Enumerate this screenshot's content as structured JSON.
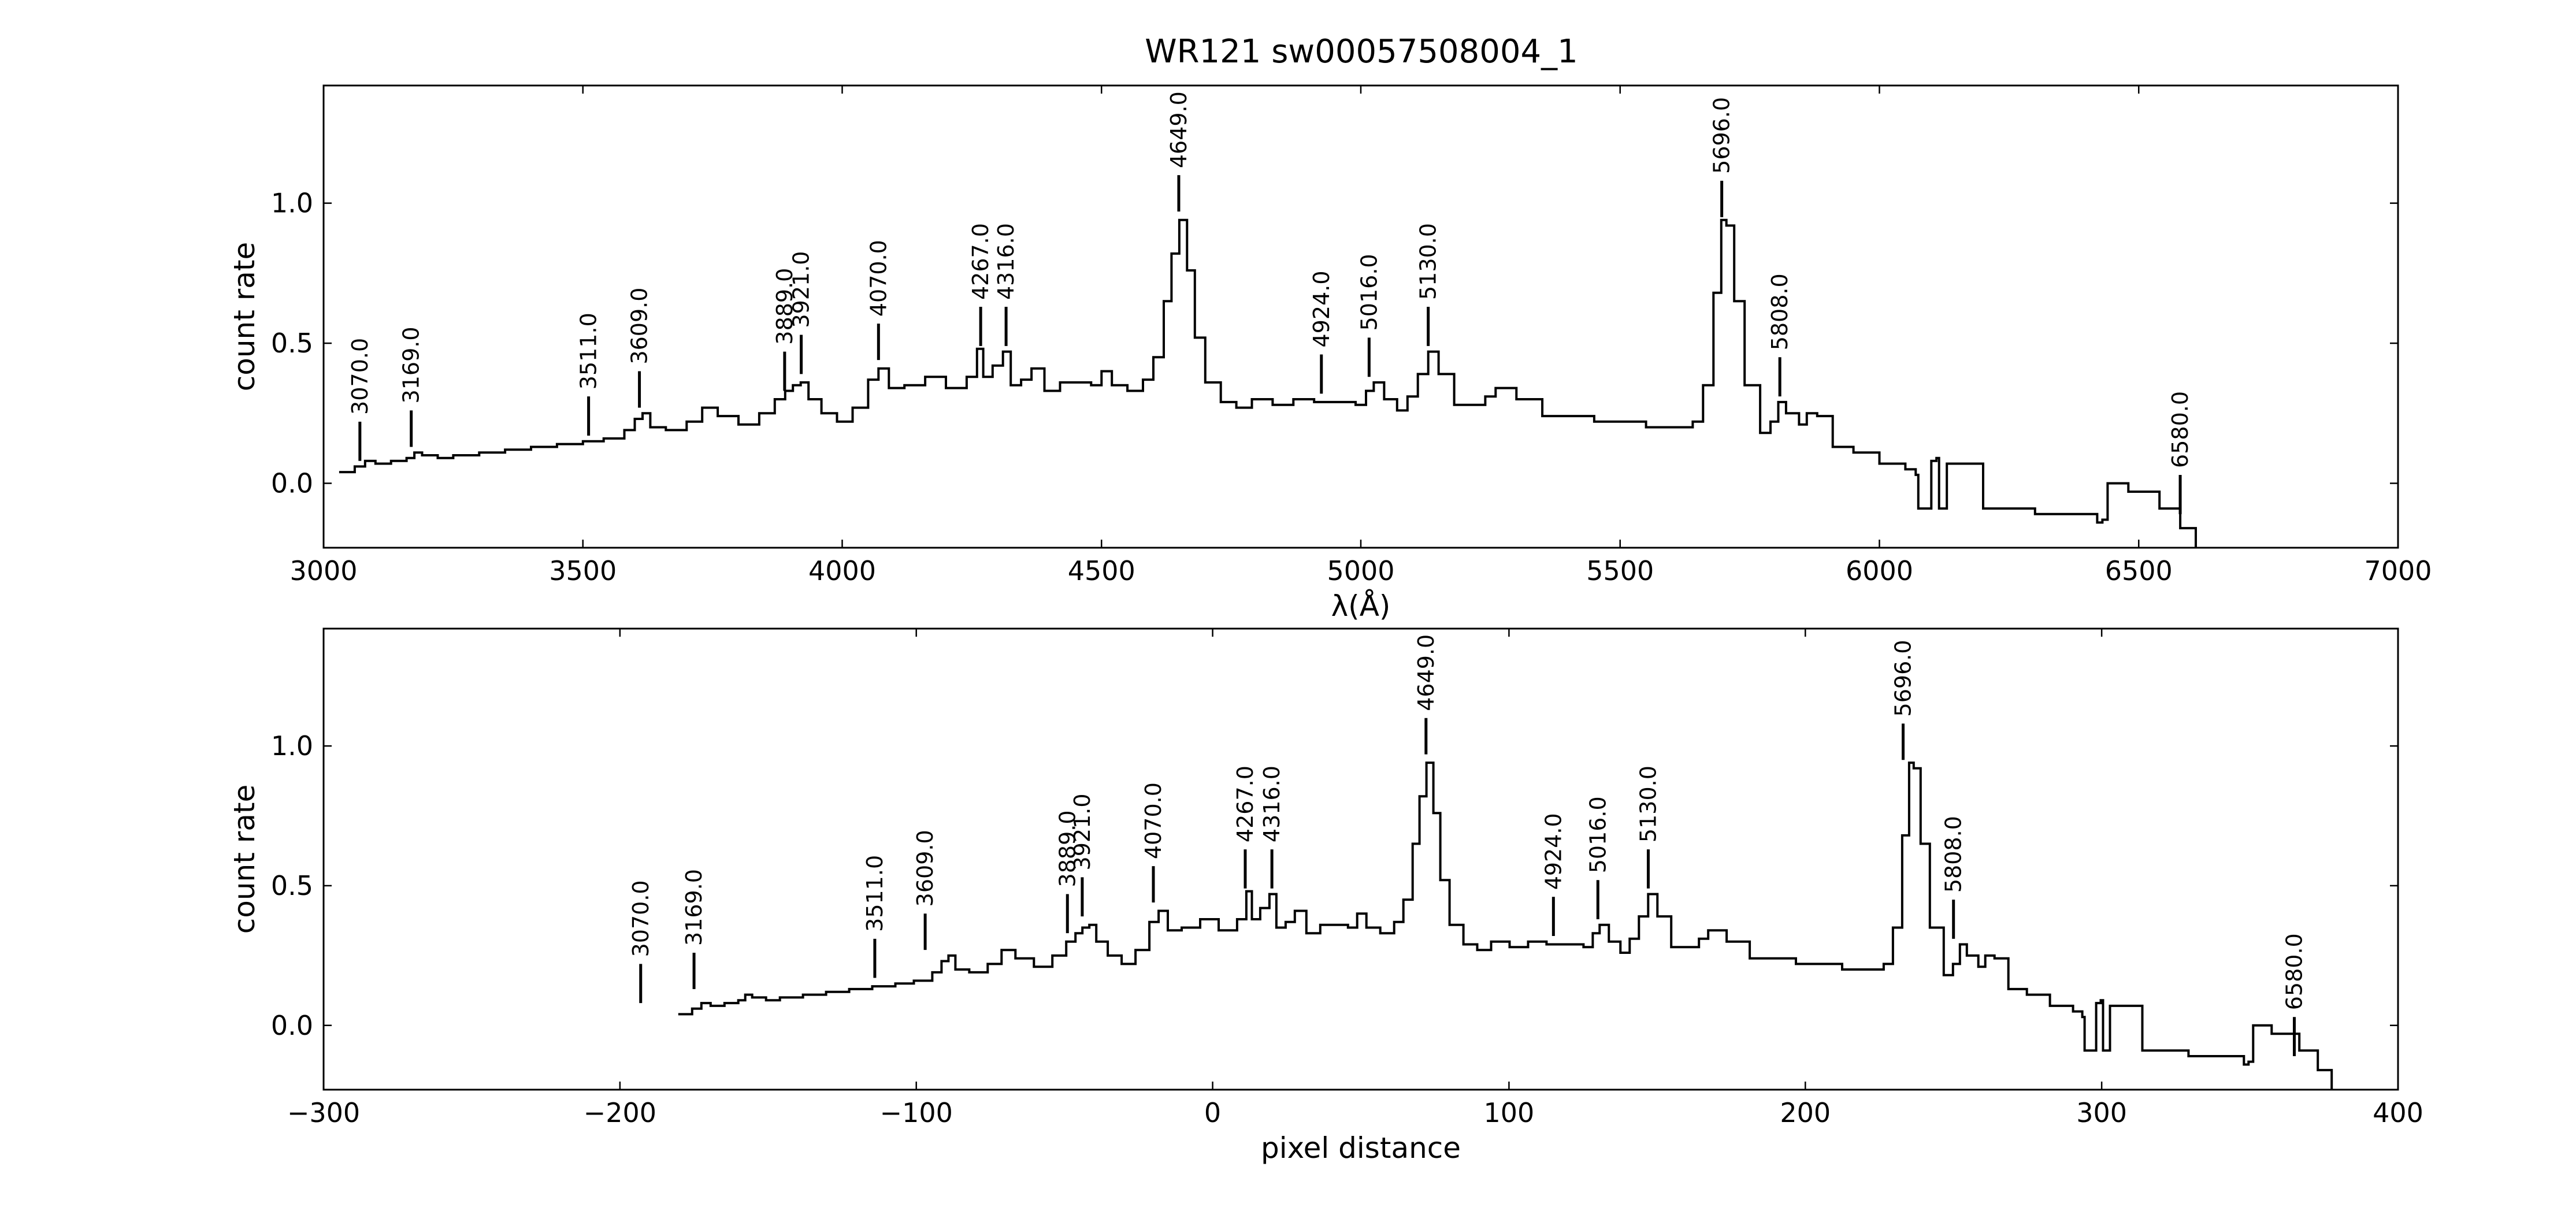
{
  "figure": {
    "title": "WR121  sw00057508004_1",
    "line_color": "#000000"
  },
  "chart_data": [
    {
      "type": "line",
      "panel": "top",
      "xlabel": "λ(Å)",
      "ylabel": "count rate",
      "xlim": [
        3000,
        7000
      ],
      "ylim": [
        -0.23,
        1.42
      ],
      "xticks": [
        "3000",
        "3500",
        "4000",
        "4500",
        "5000",
        "5500",
        "6000",
        "6500",
        "7000"
      ],
      "yticks": [
        "0.0",
        "0.5",
        "1.0"
      ],
      "grid": false,
      "line_labels": [
        {
          "label": "3070.0",
          "x": 3070,
          "y0": 0.08,
          "y1": 0.22
        },
        {
          "label": "3169.0",
          "x": 3169,
          "y0": 0.13,
          "y1": 0.26
        },
        {
          "label": "3511.0",
          "x": 3511,
          "y0": 0.17,
          "y1": 0.31
        },
        {
          "label": "3609.0",
          "x": 3609,
          "y0": 0.27,
          "y1": 0.4
        },
        {
          "label": "3889.0",
          "x": 3889,
          "y0": 0.33,
          "y1": 0.47
        },
        {
          "label": "3921.0",
          "x": 3921,
          "y0": 0.39,
          "y1": 0.53
        },
        {
          "label": "4070.0",
          "x": 4070,
          "y0": 0.44,
          "y1": 0.57
        },
        {
          "label": "4267.0",
          "x": 4267,
          "y0": 0.49,
          "y1": 0.63
        },
        {
          "label": "4316.0",
          "x": 4316,
          "y0": 0.49,
          "y1": 0.63
        },
        {
          "label": "4649.0",
          "x": 4649,
          "y0": 0.97,
          "y1": 1.1
        },
        {
          "label": "4924.0",
          "x": 4924,
          "y0": 0.32,
          "y1": 0.46
        },
        {
          "label": "5016.0",
          "x": 5016,
          "y0": 0.38,
          "y1": 0.52
        },
        {
          "label": "5130.0",
          "x": 5130,
          "y0": 0.49,
          "y1": 0.63
        },
        {
          "label": "5696.0",
          "x": 5696,
          "y0": 0.95,
          "y1": 1.08
        },
        {
          "label": "5808.0",
          "x": 5808,
          "y0": 0.31,
          "y1": 0.45
        },
        {
          "label": "6580.0",
          "x": 6580,
          "y0": -0.11,
          "y1": 0.03
        }
      ]
    },
    {
      "type": "line",
      "panel": "bottom",
      "xlabel": "pixel distance",
      "ylabel": "count rate",
      "xlim": [
        -300,
        400
      ],
      "ylim": [
        -0.23,
        1.42
      ],
      "xticks": [
        "−300",
        "−200",
        "−100",
        "0",
        "100",
        "200",
        "300",
        "400"
      ],
      "yticks": [
        "0.0",
        "0.5",
        "1.0"
      ],
      "grid": false,
      "line_labels": [
        {
          "label": "3070.0",
          "x": -193,
          "y0": 0.08,
          "y1": 0.22
        },
        {
          "label": "3169.0",
          "x": -175,
          "y0": 0.13,
          "y1": 0.26
        },
        {
          "label": "3511.0",
          "x": -114,
          "y0": 0.17,
          "y1": 0.31
        },
        {
          "label": "3609.0",
          "x": -97,
          "y0": 0.27,
          "y1": 0.4
        },
        {
          "label": "3889.0",
          "x": -49,
          "y0": 0.33,
          "y1": 0.47
        },
        {
          "label": "3921.0",
          "x": -44,
          "y0": 0.39,
          "y1": 0.53
        },
        {
          "label": "4070.0",
          "x": -20,
          "y0": 0.44,
          "y1": 0.57
        },
        {
          "label": "4267.0",
          "x": 11,
          "y0": 0.49,
          "y1": 0.63
        },
        {
          "label": "4316.0",
          "x": 20,
          "y0": 0.49,
          "y1": 0.63
        },
        {
          "label": "4649.0",
          "x": 72,
          "y0": 0.97,
          "y1": 1.1
        },
        {
          "label": "4924.0",
          "x": 115,
          "y0": 0.32,
          "y1": 0.46
        },
        {
          "label": "5016.0",
          "x": 130,
          "y0": 0.38,
          "y1": 0.52
        },
        {
          "label": "5130.0",
          "x": 147,
          "y0": 0.49,
          "y1": 0.63
        },
        {
          "label": "5696.0",
          "x": 233,
          "y0": 0.95,
          "y1": 1.08
        },
        {
          "label": "5808.0",
          "x": 250,
          "y0": 0.31,
          "y1": 0.45
        },
        {
          "label": "6580.0",
          "x": 365,
          "y0": -0.11,
          "y1": 0.03
        }
      ]
    }
  ],
  "spectrum": {
    "wavelength": [
      3030,
      3060,
      3080,
      3100,
      3130,
      3160,
      3175,
      3190,
      3220,
      3250,
      3300,
      3350,
      3400,
      3450,
      3500,
      3540,
      3580,
      3600,
      3615,
      3630,
      3660,
      3700,
      3730,
      3760,
      3800,
      3840,
      3870,
      3890,
      3905,
      3920,
      3935,
      3960,
      3990,
      4020,
      4050,
      4070,
      4090,
      4120,
      4160,
      4200,
      4240,
      4260,
      4272,
      4290,
      4310,
      4325,
      4345,
      4365,
      4390,
      4420,
      4450,
      4480,
      4500,
      4520,
      4550,
      4580,
      4600,
      4620,
      4635,
      4650,
      4665,
      4680,
      4700,
      4730,
      4760,
      4790,
      4830,
      4870,
      4910,
      4950,
      4990,
      5010,
      5025,
      5045,
      5070,
      5090,
      5110,
      5130,
      5150,
      5180,
      5210,
      5240,
      5260,
      5300,
      5350,
      5400,
      5450,
      5500,
      5550,
      5600,
      5640,
      5660,
      5680,
      5695,
      5705,
      5720,
      5740,
      5770,
      5790,
      5805,
      5820,
      5845,
      5860,
      5880,
      5910,
      5950,
      6000,
      6050,
      6070,
      6075,
      6090,
      6100,
      6110,
      6115,
      6125,
      6130,
      6200,
      6300,
      6420,
      6430,
      6440,
      6480,
      6540,
      6580,
      6610
    ],
    "count_rate": [
      0.04,
      0.06,
      0.08,
      0.07,
      0.08,
      0.09,
      0.11,
      0.1,
      0.09,
      0.1,
      0.11,
      0.12,
      0.13,
      0.14,
      0.15,
      0.16,
      0.19,
      0.23,
      0.25,
      0.2,
      0.19,
      0.22,
      0.27,
      0.24,
      0.21,
      0.25,
      0.3,
      0.33,
      0.35,
      0.36,
      0.3,
      0.25,
      0.22,
      0.27,
      0.37,
      0.41,
      0.34,
      0.35,
      0.38,
      0.34,
      0.38,
      0.48,
      0.38,
      0.42,
      0.47,
      0.35,
      0.37,
      0.41,
      0.33,
      0.36,
      0.36,
      0.35,
      0.4,
      0.35,
      0.33,
      0.37,
      0.45,
      0.65,
      0.82,
      0.94,
      0.76,
      0.52,
      0.36,
      0.29,
      0.27,
      0.3,
      0.28,
      0.3,
      0.29,
      0.29,
      0.28,
      0.33,
      0.36,
      0.3,
      0.26,
      0.31,
      0.39,
      0.47,
      0.39,
      0.28,
      0.28,
      0.31,
      0.34,
      0.3,
      0.24,
      0.24,
      0.22,
      0.22,
      0.2,
      0.2,
      0.22,
      0.35,
      0.68,
      0.94,
      0.92,
      0.65,
      0.35,
      0.18,
      0.22,
      0.29,
      0.25,
      0.21,
      0.25,
      0.24,
      0.13,
      0.11,
      0.07,
      0.05,
      0.03,
      -0.09,
      -0.09,
      0.08,
      0.09,
      -0.09,
      -0.09,
      0.07,
      -0.09,
      -0.11,
      -0.14,
      -0.13,
      0.0,
      -0.03,
      -0.09,
      -0.16,
      -0.23
    ]
  }
}
